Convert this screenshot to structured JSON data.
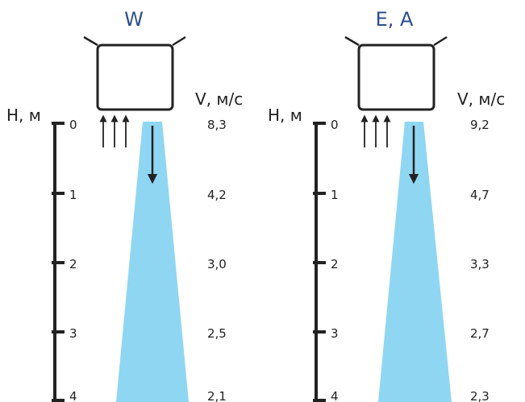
{
  "colors": {
    "title": "#2c4f8c",
    "ink": "#222222",
    "jet": "#8fd6f3"
  },
  "axis_labels": {
    "height": "H, м",
    "velocity": "V, м/с"
  },
  "panels": [
    {
      "title": "W",
      "heights": [
        "0",
        "1",
        "2",
        "3",
        "4"
      ],
      "velocities": [
        "8,3",
        "4,2",
        "3,0",
        "2,5",
        "2,1"
      ]
    },
    {
      "title": "E, A",
      "heights": [
        "0",
        "1",
        "2",
        "3",
        "4"
      ],
      "velocities": [
        "9,2",
        "4,7",
        "3,3",
        "2,7",
        "2,3"
      ]
    }
  ],
  "icons": [
    "air-intake-arrows-icon",
    "air-outflow-arrow-icon",
    "air-unit-box-icon"
  ]
}
